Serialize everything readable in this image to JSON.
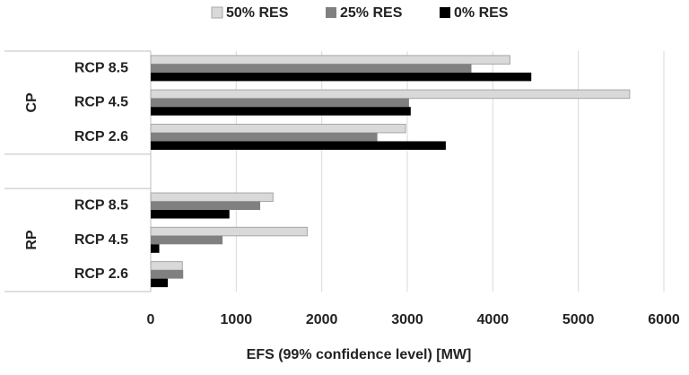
{
  "chart_data": {
    "type": "bar",
    "orientation": "horizontal",
    "xlabel": "EFS (99% confidence level) [MW]",
    "group_labels": [
      "CP",
      "RP"
    ],
    "categories": [
      "RCP 8.5",
      "RCP 4.5",
      "RCP 2.6",
      null,
      "RCP 8.5",
      "RCP 4.5",
      "RCP 2.6"
    ],
    "series": [
      {
        "name": "50% RES",
        "color": "#d9d9d9",
        "values": [
          4200,
          5600,
          2980,
          null,
          1430,
          1830,
          370
        ]
      },
      {
        "name": "25% RES",
        "color": "#808080",
        "values": [
          3750,
          3020,
          2650,
          null,
          1280,
          840,
          380
        ]
      },
      {
        "name": "0% RES",
        "color": "#000000",
        "values": [
          4450,
          3040,
          3450,
          null,
          920,
          100,
          200
        ]
      }
    ],
    "xlim": [
      0,
      6000
    ],
    "xticks": [
      0,
      1000,
      2000,
      3000,
      4000,
      5000,
      6000
    ],
    "grid": true,
    "legend": "top"
  }
}
